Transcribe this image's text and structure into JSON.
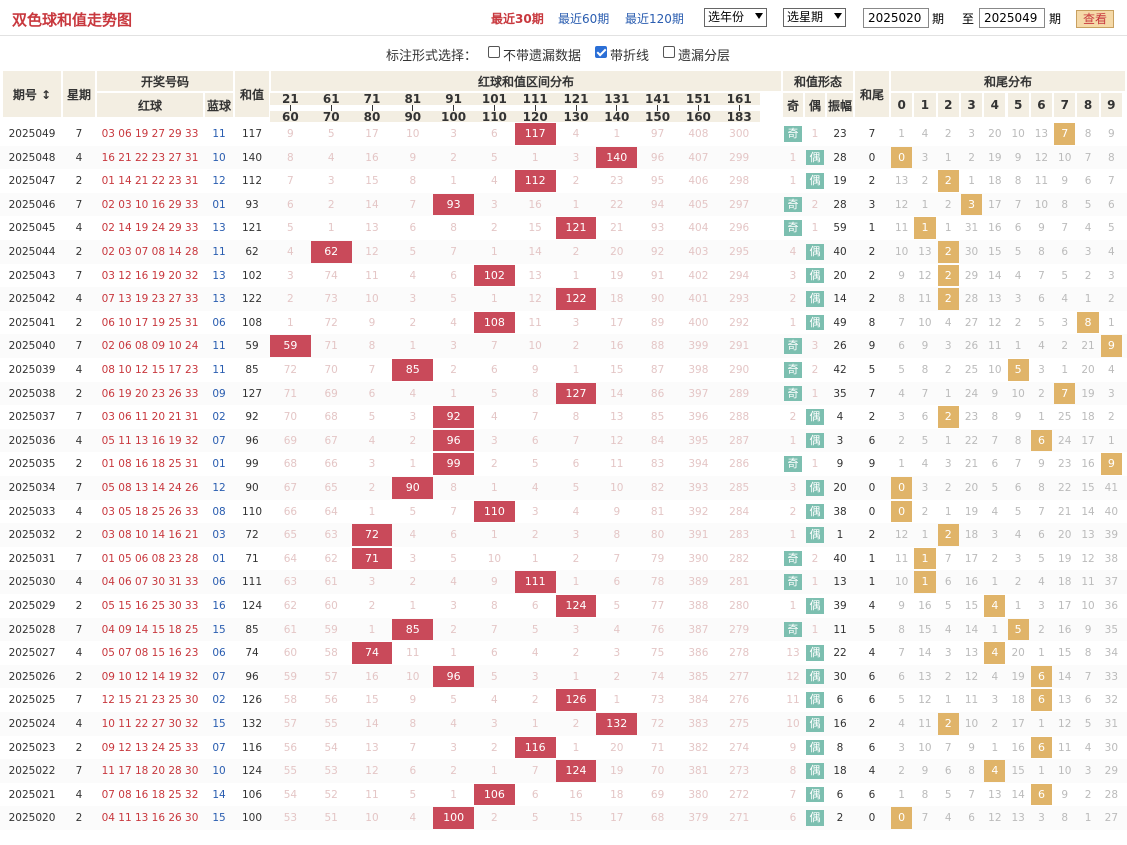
{
  "header": {
    "title": "双色球和值走势图",
    "recent": [
      "最近30期",
      "最近60期",
      "最近120期"
    ],
    "year_select": "选年份",
    "week_select": "选星期",
    "from": "2025020",
    "from_suffix": "期",
    "to_prefix": "至",
    "to": "2025049",
    "to_suffix": "期",
    "query": "查看"
  },
  "options": {
    "label": "标注形式选择：",
    "items": [
      {
        "label": "不带遗漏数据",
        "checked": false
      },
      {
        "label": "带折线",
        "checked": true
      },
      {
        "label": "遗漏分层",
        "checked": false
      }
    ]
  },
  "columns": {
    "issue": "期号",
    "issue_sort": "↕",
    "week": "星期",
    "draw": "开奖号码",
    "red": "红球",
    "blue": "蓝球",
    "sum": "和值",
    "dist": "红球和值区间分布",
    "form": "和值形态",
    "odd": "奇",
    "even": "偶",
    "amp": "振幅",
    "tail": "和尾",
    "taildist": "和尾分布",
    "ranges": [
      [
        "21",
        "60"
      ],
      [
        "61",
        "70"
      ],
      [
        "71",
        "80"
      ],
      [
        "81",
        "90"
      ],
      [
        "91",
        "100"
      ],
      [
        "101",
        "110"
      ],
      [
        "111",
        "120"
      ],
      [
        "121",
        "130"
      ],
      [
        "131",
        "140"
      ],
      [
        "141",
        "150"
      ],
      [
        "151",
        "160"
      ],
      [
        "161",
        "183"
      ]
    ],
    "tails": [
      "0",
      "1",
      "2",
      "3",
      "4",
      "5",
      "6",
      "7",
      "8",
      "9"
    ]
  },
  "rows": [
    {
      "issue": "2025049",
      "week": "7",
      "red": "03 06 19 27 29 33",
      "blue": "11",
      "sum": 117,
      "range": 6,
      "rmiss": [
        "9",
        "5",
        "17",
        "10",
        "3",
        "6",
        "117",
        "4",
        "1",
        "97",
        "408",
        "300"
      ],
      "oe": "odd",
      "omiss": "1",
      "amp": "23",
      "tail": 7,
      "tmiss": [
        "1",
        "4",
        "2",
        "3",
        "20",
        "10",
        "13",
        "7",
        "8",
        "9"
      ]
    },
    {
      "issue": "2025048",
      "week": "4",
      "red": "16 21 22 23 27 31",
      "blue": "10",
      "sum": 140,
      "range": 8,
      "rmiss": [
        "8",
        "4",
        "16",
        "9",
        "2",
        "5",
        "1",
        "3",
        "140",
        "96",
        "407",
        "299"
      ],
      "oe": "even",
      "omiss": "1",
      "amp": "28",
      "tail": 0,
      "tmiss": [
        "0",
        "3",
        "1",
        "2",
        "19",
        "9",
        "12",
        "10",
        "7",
        "8"
      ]
    },
    {
      "issue": "2025047",
      "week": "2",
      "red": "01 14 21 22 23 31",
      "blue": "12",
      "sum": 112,
      "range": 6,
      "rmiss": [
        "7",
        "3",
        "15",
        "8",
        "1",
        "4",
        "112",
        "2",
        "23",
        "95",
        "406",
        "298"
      ],
      "oe": "even",
      "omiss": "1",
      "amp": "19",
      "tail": 2,
      "tmiss": [
        "13",
        "2",
        "2",
        "1",
        "18",
        "8",
        "11",
        "9",
        "6",
        "7"
      ]
    },
    {
      "issue": "2025046",
      "week": "7",
      "red": "02 03 10 16 29 33",
      "blue": "01",
      "sum": 93,
      "range": 4,
      "rmiss": [
        "6",
        "2",
        "14",
        "7",
        "93",
        "3",
        "16",
        "1",
        "22",
        "94",
        "405",
        "297"
      ],
      "oe": "odd",
      "omiss": "2",
      "amp": "28",
      "tail": 3,
      "tmiss": [
        "12",
        "1",
        "2",
        "3",
        "17",
        "7",
        "10",
        "8",
        "5",
        "6"
      ]
    },
    {
      "issue": "2025045",
      "week": "4",
      "red": "02 14 19 24 29 33",
      "blue": "13",
      "sum": 121,
      "range": 7,
      "rmiss": [
        "5",
        "1",
        "13",
        "6",
        "8",
        "2",
        "15",
        "121",
        "21",
        "93",
        "404",
        "296"
      ],
      "oe": "odd",
      "omiss": "1",
      "amp": "59",
      "tail": 1,
      "tmiss": [
        "11",
        "1",
        "1",
        "31",
        "16",
        "6",
        "9",
        "7",
        "4",
        "5"
      ]
    },
    {
      "issue": "2025044",
      "week": "2",
      "red": "02 03 07 08 14 28",
      "blue": "11",
      "sum": 62,
      "range": 1,
      "rmiss": [
        "4",
        "62",
        "12",
        "5",
        "7",
        "1",
        "14",
        "2",
        "20",
        "92",
        "403",
        "295"
      ],
      "oe": "even",
      "omiss": "4",
      "amp": "40",
      "tail": 2,
      "tmiss": [
        "10",
        "13",
        "2",
        "30",
        "15",
        "5",
        "8",
        "6",
        "3",
        "4"
      ]
    },
    {
      "issue": "2025043",
      "week": "7",
      "red": "03 12 16 19 20 32",
      "blue": "13",
      "sum": 102,
      "range": 5,
      "rmiss": [
        "3",
        "74",
        "11",
        "4",
        "6",
        "102",
        "13",
        "1",
        "19",
        "91",
        "402",
        "294"
      ],
      "oe": "even",
      "omiss": "3",
      "amp": "20",
      "tail": 2,
      "tmiss": [
        "9",
        "12",
        "2",
        "29",
        "14",
        "4",
        "7",
        "5",
        "2",
        "3"
      ]
    },
    {
      "issue": "2025042",
      "week": "4",
      "red": "07 13 19 23 27 33",
      "blue": "13",
      "sum": 122,
      "range": 7,
      "rmiss": [
        "2",
        "73",
        "10",
        "3",
        "5",
        "1",
        "12",
        "122",
        "18",
        "90",
        "401",
        "293"
      ],
      "oe": "even",
      "omiss": "2",
      "amp": "14",
      "tail": 2,
      "tmiss": [
        "8",
        "11",
        "2",
        "28",
        "13",
        "3",
        "6",
        "4",
        "1",
        "2"
      ]
    },
    {
      "issue": "2025041",
      "week": "2",
      "red": "06 10 17 19 25 31",
      "blue": "06",
      "sum": 108,
      "range": 5,
      "rmiss": [
        "1",
        "72",
        "9",
        "2",
        "4",
        "108",
        "11",
        "3",
        "17",
        "89",
        "400",
        "292"
      ],
      "oe": "even",
      "omiss": "1",
      "amp": "49",
      "tail": 8,
      "tmiss": [
        "7",
        "10",
        "4",
        "27",
        "12",
        "2",
        "5",
        "3",
        "8",
        "1"
      ]
    },
    {
      "issue": "2025040",
      "week": "7",
      "red": "02 06 08 09 10 24",
      "blue": "11",
      "sum": 59,
      "range": 0,
      "rmiss": [
        "59",
        "71",
        "8",
        "1",
        "3",
        "7",
        "10",
        "2",
        "16",
        "88",
        "399",
        "291"
      ],
      "oe": "odd",
      "omiss": "3",
      "amp": "26",
      "tail": 9,
      "tmiss": [
        "6",
        "9",
        "3",
        "26",
        "11",
        "1",
        "4",
        "2",
        "21",
        "9"
      ]
    },
    {
      "issue": "2025039",
      "week": "4",
      "red": "08 10 12 15 17 23",
      "blue": "11",
      "sum": 85,
      "range": 3,
      "rmiss": [
        "72",
        "70",
        "7",
        "85",
        "2",
        "6",
        "9",
        "1",
        "15",
        "87",
        "398",
        "290"
      ],
      "oe": "odd",
      "omiss": "2",
      "amp": "42",
      "tail": 5,
      "tmiss": [
        "5",
        "8",
        "2",
        "25",
        "10",
        "5",
        "3",
        "1",
        "20",
        "4"
      ]
    },
    {
      "issue": "2025038",
      "week": "2",
      "red": "06 19 20 23 26 33",
      "blue": "09",
      "sum": 127,
      "range": 7,
      "rmiss": [
        "71",
        "69",
        "6",
        "4",
        "1",
        "5",
        "8",
        "127",
        "14",
        "86",
        "397",
        "289"
      ],
      "oe": "odd",
      "omiss": "1",
      "amp": "35",
      "tail": 7,
      "tmiss": [
        "4",
        "7",
        "1",
        "24",
        "9",
        "10",
        "2",
        "7",
        "19",
        "3"
      ]
    },
    {
      "issue": "2025037",
      "week": "7",
      "red": "03 06 11 20 21 31",
      "blue": "02",
      "sum": 92,
      "range": 4,
      "rmiss": [
        "70",
        "68",
        "5",
        "3",
        "92",
        "4",
        "7",
        "8",
        "13",
        "85",
        "396",
        "288"
      ],
      "oe": "even",
      "omiss": "2",
      "amp": "4",
      "tail": 2,
      "tmiss": [
        "3",
        "6",
        "2",
        "23",
        "8",
        "9",
        "1",
        "25",
        "18",
        "2"
      ]
    },
    {
      "issue": "2025036",
      "week": "4",
      "red": "05 11 13 16 19 32",
      "blue": "07",
      "sum": 96,
      "range": 4,
      "rmiss": [
        "69",
        "67",
        "4",
        "2",
        "96",
        "3",
        "6",
        "7",
        "12",
        "84",
        "395",
        "287"
      ],
      "oe": "even",
      "omiss": "1",
      "amp": "3",
      "tail": 6,
      "tmiss": [
        "2",
        "5",
        "1",
        "22",
        "7",
        "8",
        "6",
        "24",
        "17",
        "1"
      ]
    },
    {
      "issue": "2025035",
      "week": "2",
      "red": "01 08 16 18 25 31",
      "blue": "01",
      "sum": 99,
      "range": 4,
      "rmiss": [
        "68",
        "66",
        "3",
        "1",
        "99",
        "2",
        "5",
        "6",
        "11",
        "83",
        "394",
        "286"
      ],
      "oe": "odd",
      "omiss": "1",
      "amp": "9",
      "tail": 9,
      "tmiss": [
        "1",
        "4",
        "3",
        "21",
        "6",
        "7",
        "9",
        "23",
        "16",
        "9"
      ]
    },
    {
      "issue": "2025034",
      "week": "7",
      "red": "05 08 13 14 24 26",
      "blue": "12",
      "sum": 90,
      "range": 3,
      "rmiss": [
        "67",
        "65",
        "2",
        "90",
        "8",
        "1",
        "4",
        "5",
        "10",
        "82",
        "393",
        "285"
      ],
      "oe": "even",
      "omiss": "3",
      "amp": "20",
      "tail": 0,
      "tmiss": [
        "0",
        "3",
        "2",
        "20",
        "5",
        "6",
        "8",
        "22",
        "15",
        "41"
      ]
    },
    {
      "issue": "2025033",
      "week": "4",
      "red": "03 05 18 25 26 33",
      "blue": "08",
      "sum": 110,
      "range": 5,
      "rmiss": [
        "66",
        "64",
        "1",
        "5",
        "7",
        "110",
        "3",
        "4",
        "9",
        "81",
        "392",
        "284"
      ],
      "oe": "even",
      "omiss": "2",
      "amp": "38",
      "tail": 0,
      "tmiss": [
        "0",
        "2",
        "1",
        "19",
        "4",
        "5",
        "7",
        "21",
        "14",
        "40"
      ]
    },
    {
      "issue": "2025032",
      "week": "2",
      "red": "03 08 10 14 16 21",
      "blue": "03",
      "sum": 72,
      "range": 2,
      "rmiss": [
        "65",
        "63",
        "72",
        "4",
        "6",
        "1",
        "2",
        "3",
        "8",
        "80",
        "391",
        "283"
      ],
      "oe": "even",
      "omiss": "1",
      "amp": "1",
      "tail": 2,
      "tmiss": [
        "12",
        "1",
        "2",
        "18",
        "3",
        "4",
        "6",
        "20",
        "13",
        "39"
      ]
    },
    {
      "issue": "2025031",
      "week": "7",
      "red": "01 05 06 08 23 28",
      "blue": "01",
      "sum": 71,
      "range": 2,
      "rmiss": [
        "64",
        "62",
        "71",
        "3",
        "5",
        "10",
        "1",
        "2",
        "7",
        "79",
        "390",
        "282"
      ],
      "oe": "odd",
      "omiss": "2",
      "amp": "40",
      "tail": 1,
      "tmiss": [
        "11",
        "1",
        "7",
        "17",
        "2",
        "3",
        "5",
        "19",
        "12",
        "38"
      ]
    },
    {
      "issue": "2025030",
      "week": "4",
      "red": "04 06 07 30 31 33",
      "blue": "06",
      "sum": 111,
      "range": 6,
      "rmiss": [
        "63",
        "61",
        "3",
        "2",
        "4",
        "9",
        "111",
        "1",
        "6",
        "78",
        "389",
        "281"
      ],
      "oe": "odd",
      "omiss": "1",
      "amp": "13",
      "tail": 1,
      "tmiss": [
        "10",
        "1",
        "6",
        "16",
        "1",
        "2",
        "4",
        "18",
        "11",
        "37"
      ]
    },
    {
      "issue": "2025029",
      "week": "2",
      "red": "05 15 16 25 30 33",
      "blue": "16",
      "sum": 124,
      "range": 7,
      "rmiss": [
        "62",
        "60",
        "2",
        "1",
        "3",
        "8",
        "6",
        "124",
        "5",
        "77",
        "388",
        "280"
      ],
      "oe": "even",
      "omiss": "1",
      "amp": "39",
      "tail": 4,
      "tmiss": [
        "9",
        "16",
        "5",
        "15",
        "4",
        "1",
        "3",
        "17",
        "10",
        "36"
      ]
    },
    {
      "issue": "2025028",
      "week": "7",
      "red": "04 09 14 15 18 25",
      "blue": "15",
      "sum": 85,
      "range": 3,
      "rmiss": [
        "61",
        "59",
        "1",
        "85",
        "2",
        "7",
        "5",
        "3",
        "4",
        "76",
        "387",
        "279"
      ],
      "oe": "odd",
      "omiss": "1",
      "amp": "11",
      "tail": 5,
      "tmiss": [
        "8",
        "15",
        "4",
        "14",
        "1",
        "5",
        "2",
        "16",
        "9",
        "35"
      ]
    },
    {
      "issue": "2025027",
      "week": "4",
      "red": "05 07 08 15 16 23",
      "blue": "06",
      "sum": 74,
      "range": 2,
      "rmiss": [
        "60",
        "58",
        "74",
        "11",
        "1",
        "6",
        "4",
        "2",
        "3",
        "75",
        "386",
        "278"
      ],
      "oe": "even",
      "omiss": "13",
      "amp": "22",
      "tail": 4,
      "tmiss": [
        "7",
        "14",
        "3",
        "13",
        "4",
        "20",
        "1",
        "15",
        "8",
        "34"
      ]
    },
    {
      "issue": "2025026",
      "week": "2",
      "red": "09 10 12 14 19 32",
      "blue": "07",
      "sum": 96,
      "range": 4,
      "rmiss": [
        "59",
        "57",
        "16",
        "10",
        "96",
        "5",
        "3",
        "1",
        "2",
        "74",
        "385",
        "277"
      ],
      "oe": "even",
      "omiss": "12",
      "amp": "30",
      "tail": 6,
      "tmiss": [
        "6",
        "13",
        "2",
        "12",
        "4",
        "19",
        "6",
        "14",
        "7",
        "33"
      ]
    },
    {
      "issue": "2025025",
      "week": "7",
      "red": "12 15 21 23 25 30",
      "blue": "02",
      "sum": 126,
      "range": 7,
      "rmiss": [
        "58",
        "56",
        "15",
        "9",
        "5",
        "4",
        "2",
        "126",
        "1",
        "73",
        "384",
        "276"
      ],
      "oe": "even",
      "omiss": "11",
      "amp": "6",
      "tail": 6,
      "tmiss": [
        "5",
        "12",
        "1",
        "11",
        "3",
        "18",
        "6",
        "13",
        "6",
        "32"
      ]
    },
    {
      "issue": "2025024",
      "week": "4",
      "red": "10 11 22 27 30 32",
      "blue": "15",
      "sum": 132,
      "range": 8,
      "rmiss": [
        "57",
        "55",
        "14",
        "8",
        "4",
        "3",
        "1",
        "2",
        "132",
        "72",
        "383",
        "275"
      ],
      "oe": "even",
      "omiss": "10",
      "amp": "16",
      "tail": 2,
      "tmiss": [
        "4",
        "11",
        "2",
        "10",
        "2",
        "17",
        "1",
        "12",
        "5",
        "31"
      ]
    },
    {
      "issue": "2025023",
      "week": "2",
      "red": "09 12 13 24 25 33",
      "blue": "07",
      "sum": 116,
      "range": 6,
      "rmiss": [
        "56",
        "54",
        "13",
        "7",
        "3",
        "2",
        "116",
        "1",
        "20",
        "71",
        "382",
        "274"
      ],
      "oe": "even",
      "omiss": "9",
      "amp": "8",
      "tail": 6,
      "tmiss": [
        "3",
        "10",
        "7",
        "9",
        "1",
        "16",
        "6",
        "11",
        "4",
        "30"
      ]
    },
    {
      "issue": "2025022",
      "week": "7",
      "red": "11 17 18 20 28 30",
      "blue": "10",
      "sum": 124,
      "range": 7,
      "rmiss": [
        "55",
        "53",
        "12",
        "6",
        "2",
        "1",
        "7",
        "124",
        "19",
        "70",
        "381",
        "273"
      ],
      "oe": "even",
      "omiss": "8",
      "amp": "18",
      "tail": 4,
      "tmiss": [
        "2",
        "9",
        "6",
        "8",
        "4",
        "15",
        "1",
        "10",
        "3",
        "29"
      ]
    },
    {
      "issue": "2025021",
      "week": "4",
      "red": "07 08 16 18 25 32",
      "blue": "14",
      "sum": 106,
      "range": 5,
      "rmiss": [
        "54",
        "52",
        "11",
        "5",
        "1",
        "106",
        "6",
        "16",
        "18",
        "69",
        "380",
        "272"
      ],
      "oe": "even",
      "omiss": "7",
      "amp": "6",
      "tail": 6,
      "tmiss": [
        "1",
        "8",
        "5",
        "7",
        "13",
        "14",
        "6",
        "9",
        "2",
        "28"
      ]
    },
    {
      "issue": "2025020",
      "week": "2",
      "red": "04 11 13 16 26 30",
      "blue": "15",
      "sum": 100,
      "range": 4,
      "rmiss": [
        "53",
        "51",
        "10",
        "4",
        "100",
        "2",
        "5",
        "15",
        "17",
        "68",
        "379",
        "271"
      ],
      "oe": "even",
      "omiss": "6",
      "amp": "2",
      "tail": 0,
      "tmiss": [
        "0",
        "7",
        "4",
        "6",
        "12",
        "13",
        "3",
        "8",
        "1",
        "27"
      ]
    }
  ],
  "colors": {
    "red": "#c94a5a",
    "orange": "#e0b469",
    "teal": "#7cbfb0",
    "line_red": "#c94a5a",
    "line_orange": "#e0b469"
  }
}
